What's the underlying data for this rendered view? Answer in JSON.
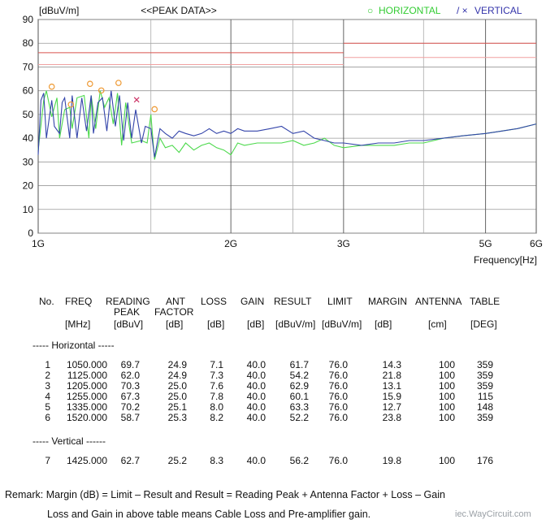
{
  "chart_data": {
    "type": "line",
    "ylabel": "[dBuV/m]",
    "title": "<<PEAK DATA>>",
    "xlabel": "Frequency[Hz]",
    "x_scale": "log",
    "ylim": [
      0,
      90
    ],
    "y_ticks": [
      0,
      10,
      20,
      30,
      40,
      50,
      60,
      70,
      80,
      90
    ],
    "x_ticks": [
      {
        "f": 1,
        "label": "1G"
      },
      {
        "f": 2,
        "label": "2G"
      },
      {
        "f": 3,
        "label": "3G"
      },
      {
        "f": 5,
        "label": "5G"
      },
      {
        "f": 6,
        "label": "6G"
      }
    ],
    "limit_lines": [
      {
        "x": [
          1,
          3
        ],
        "y": 76.0,
        "color": "#d9534f"
      },
      {
        "x": [
          3,
          6
        ],
        "y": 80.0,
        "color": "#d9534f"
      },
      {
        "x": [
          1,
          3
        ],
        "y": 71.0,
        "color": "#f0a0a0"
      },
      {
        "x": [
          3,
          6
        ],
        "y": 74.0,
        "color": "#f0a0a0"
      }
    ],
    "legend": [
      {
        "name": "HORIZONTAL",
        "marker": "○",
        "color": "#33cc33"
      },
      {
        "name": "VERTICAL",
        "marker": "/ ×",
        "color": "#3333aa"
      }
    ],
    "series": [
      {
        "name": "HORIZONTAL",
        "color": "#4cd94c",
        "x": [
          1.0,
          1.02,
          1.03,
          1.05,
          1.07,
          1.08,
          1.1,
          1.12,
          1.13,
          1.15,
          1.18,
          1.2,
          1.21,
          1.23,
          1.25,
          1.27,
          1.29,
          1.31,
          1.33,
          1.35,
          1.37,
          1.4,
          1.45,
          1.48,
          1.5,
          1.52,
          1.55,
          1.58,
          1.62,
          1.66,
          1.7,
          1.75,
          1.8,
          1.85,
          1.9,
          1.95,
          2.0,
          2.05,
          2.1,
          2.2,
          2.3,
          2.4,
          2.5,
          2.6,
          2.7,
          2.8,
          2.9,
          3.0,
          3.2,
          3.4,
          3.6,
          3.8,
          4.0,
          4.3,
          4.6,
          5.0,
          5.3,
          5.6,
          6.0
        ],
        "y": [
          35,
          56,
          60,
          49,
          57,
          40,
          52,
          53,
          44,
          57,
          58,
          40,
          58,
          44,
          60,
          53,
          57,
          46,
          59,
          37,
          55,
          38,
          39,
          38,
          50,
          31,
          40,
          36,
          37,
          34,
          38,
          35,
          37,
          38,
          36,
          35,
          33,
          38,
          37,
          38,
          38,
          38,
          39,
          37,
          38,
          40,
          37,
          36,
          37,
          37,
          37,
          38,
          38,
          40,
          41,
          42,
          43,
          44,
          46
        ]
      },
      {
        "name": "VERTICAL",
        "color": "#3344aa",
        "x": [
          1.0,
          1.01,
          1.02,
          1.03,
          1.05,
          1.06,
          1.08,
          1.09,
          1.1,
          1.12,
          1.13,
          1.15,
          1.17,
          1.19,
          1.21,
          1.22,
          1.24,
          1.26,
          1.28,
          1.3,
          1.32,
          1.34,
          1.36,
          1.38,
          1.4,
          1.42,
          1.45,
          1.47,
          1.5,
          1.52,
          1.55,
          1.58,
          1.62,
          1.66,
          1.7,
          1.75,
          1.8,
          1.85,
          1.9,
          1.95,
          2.0,
          2.05,
          2.1,
          2.2,
          2.3,
          2.4,
          2.5,
          2.6,
          2.7,
          2.8,
          2.9,
          3.0,
          3.2,
          3.4,
          3.6,
          3.8,
          4.0,
          4.3,
          4.6,
          5.0,
          5.3,
          5.6,
          6.0
        ],
        "y": [
          33,
          56,
          59,
          40,
          56,
          45,
          42,
          55,
          57,
          40,
          58,
          40,
          57,
          43,
          58,
          42,
          55,
          57,
          43,
          60,
          45,
          58,
          39,
          55,
          40,
          52,
          38,
          45,
          44,
          32,
          44,
          42,
          40,
          43,
          42,
          41,
          42,
          44,
          42,
          43,
          42,
          44,
          43,
          43,
          44,
          45,
          42,
          43,
          40,
          39,
          38,
          38,
          37,
          38,
          38,
          39,
          39,
          40,
          41,
          42,
          43,
          44,
          46
        ]
      }
    ],
    "peak_markers_horizontal": [
      {
        "f": 1.05,
        "v": 61.7
      },
      {
        "f": 1.125,
        "v": 54.2
      },
      {
        "f": 1.205,
        "v": 62.9
      },
      {
        "f": 1.255,
        "v": 60.1
      },
      {
        "f": 1.335,
        "v": 63.3
      },
      {
        "f": 1.52,
        "v": 52.2
      }
    ],
    "peak_markers_vertical": [
      {
        "f": 1.425,
        "v": 56.2
      }
    ]
  },
  "table": {
    "headers": {
      "no": "No.",
      "freq": "FREQ",
      "reading": "READING",
      "reading2": "PEAK",
      "ant": "ANT",
      "ant2": "FACTOR",
      "loss": "LOSS",
      "gain": "GAIN",
      "result": "RESULT",
      "limit": "LIMIT",
      "margin": "MARGIN",
      "antenna": "ANTENNA",
      "table": "TABLE"
    },
    "units": {
      "freq": "[MHz]",
      "reading": "[dBuV]",
      "ant": "[dB]",
      "loss": "[dB]",
      "gain": "[dB]",
      "result": "[dBuV/m]",
      "limit": "[dBuV/m]",
      "margin": "[dB]",
      "antenna": "[cm]",
      "table": "[DEG]"
    },
    "horizontal_label": "----- Horizontal -----",
    "vertical_label": "----- Vertical ------",
    "horizontal_rows": [
      [
        "1",
        "1050.000",
        "69.7",
        "24.9",
        "7.1",
        "40.0",
        "61.7",
        "76.0",
        "14.3",
        "100",
        "359"
      ],
      [
        "2",
        "1125.000",
        "62.0",
        "24.9",
        "7.3",
        "40.0",
        "54.2",
        "76.0",
        "21.8",
        "100",
        "359"
      ],
      [
        "3",
        "1205.000",
        "70.3",
        "25.0",
        "7.6",
        "40.0",
        "62.9",
        "76.0",
        "13.1",
        "100",
        "359"
      ],
      [
        "4",
        "1255.000",
        "67.3",
        "25.0",
        "7.8",
        "40.0",
        "60.1",
        "76.0",
        "15.9",
        "100",
        "115"
      ],
      [
        "5",
        "1335.000",
        "70.2",
        "25.1",
        "8.0",
        "40.0",
        "63.3",
        "76.0",
        "12.7",
        "100",
        "148"
      ],
      [
        "6",
        "1520.000",
        "58.7",
        "25.3",
        "8.2",
        "40.0",
        "52.2",
        "76.0",
        "23.8",
        "100",
        "359"
      ]
    ],
    "vertical_rows": [
      [
        "7",
        "1425.000",
        "62.7",
        "25.2",
        "8.3",
        "40.0",
        "56.2",
        "76.0",
        "19.8",
        "100",
        "176"
      ]
    ]
  },
  "remark_line1": "Remark: Margin (dB) = Limit –  Result and Result = Reading Peak + Antenna Factor + Loss – Gain",
  "remark_line2": "Loss and Gain in above table means Cable Loss and Pre-amplifier gain.",
  "watermark": "iec.WayCircuit.com"
}
